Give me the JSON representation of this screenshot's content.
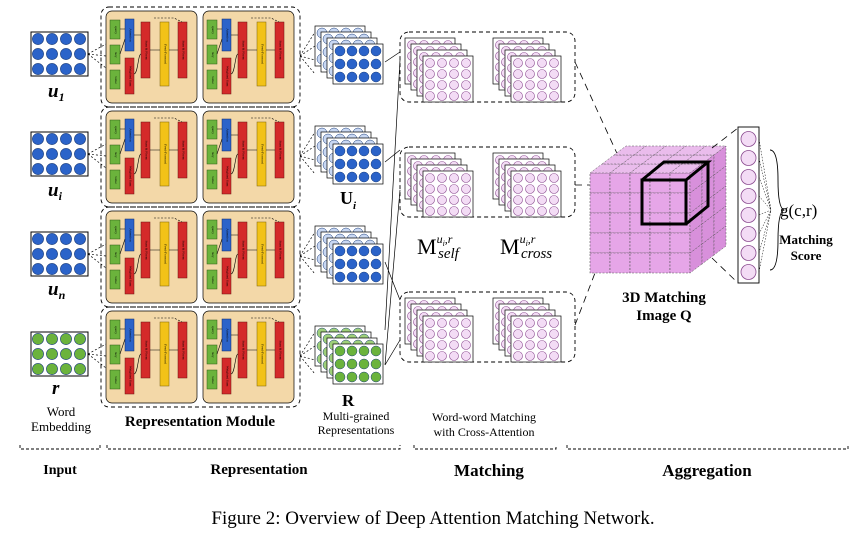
{
  "rows": [
    {
      "label_main": "u",
      "label_sub": "1"
    },
    {
      "label_main": "u",
      "label_sub": "i"
    },
    {
      "label_main": "u",
      "label_sub": "n"
    },
    {
      "label_main": "r",
      "label_sub": ""
    }
  ],
  "enc": {
    "query": "query",
    "key": "key",
    "value": "value",
    "attention": "Attention",
    "weighted_sum": "Weighted Sum",
    "sum_norm": "Sum & Norm",
    "feed_forward": "Feed-Forward"
  },
  "labels": {
    "word_embedding_1": "Word",
    "word_embedding_2": "Embedding",
    "representation_module": "Representation Module",
    "U_i": "U",
    "U_i_sub": "i",
    "R": "R",
    "multi_grained_1": "Multi-grained",
    "multi_grained_2": "Representations",
    "M_self": "M",
    "M_self_sup": "u",
    "M_self_sup_sub": "i",
    "M_self_sup_r": ",r",
    "M_self_sub": "self",
    "M_cross": "M",
    "M_cross_sup": "u",
    "M_cross_sup_sub": "i",
    "M_cross_sup_r": ",r",
    "M_cross_sub": "cross",
    "ww_matching_1": "Word-word Matching",
    "ww_matching_2": "with Cross-Attention",
    "image_q_1": "3D Matching",
    "image_q_2": "Image Q",
    "g_cr": "g(c,r)",
    "matching_score_1": "Matching",
    "matching_score_2": "Score"
  },
  "stages": {
    "input": "Input",
    "representation": "Representation",
    "matching": "Matching",
    "aggregation": "Aggregation"
  },
  "caption": "Figure 2: Overview of Deep Attention Matching Network.",
  "colors": {
    "blue": "#2b63c9",
    "green": "#6bb33c",
    "red": "#d42a2a",
    "yellow": "#f2c218",
    "module_bg": "#f3d8a8",
    "purple": "#d9a6dd",
    "purple_fill": "#f3dcf5",
    "cube": "#e6a6e8"
  }
}
